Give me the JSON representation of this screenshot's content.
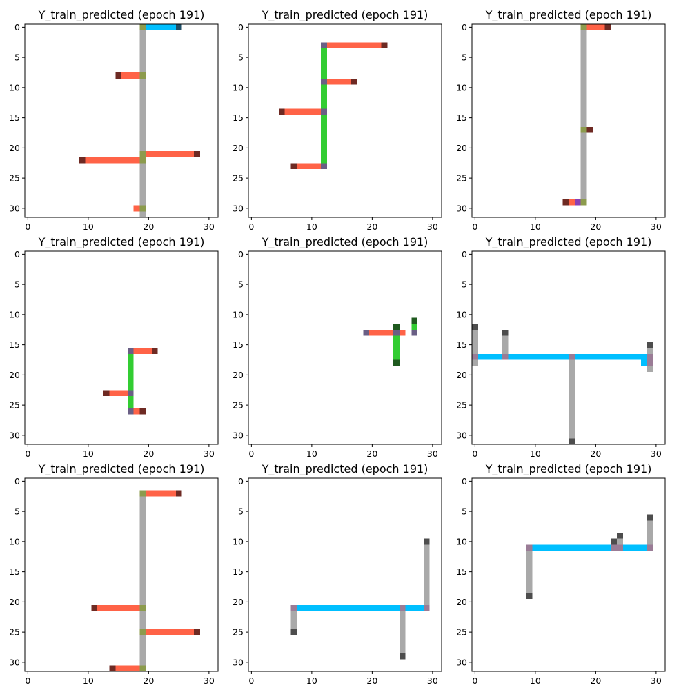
{
  "figure_title": "",
  "colors": {
    "light_gray": "#A9A9A9",
    "dark_gray": "#4D4D4D",
    "blue": "#00BFFF",
    "dark_teal": "#1F4E66",
    "olive": "#8C9B4D",
    "salmon": "#FF6347",
    "maroon": "#6E2A23",
    "slate_purple": "#6A5F85",
    "green": "#32CD32",
    "dark_green": "#1F5A1F",
    "mauve": "#9A7C96",
    "purple": "#8A3FB5"
  },
  "chart_data": [
    {
      "type": "heatmap",
      "title": "Y_train_predicted (epoch 191)",
      "xlim": [
        -0.5,
        31.5
      ],
      "ylim": [
        31.5,
        -0.5
      ],
      "xticks": [
        0,
        10,
        20,
        30
      ],
      "yticks": [
        0,
        5,
        10,
        15,
        20,
        25,
        30
      ],
      "segments": [
        {
          "row": 0,
          "col": 19,
          "len": 32,
          "dir": "v",
          "color": "light_gray"
        },
        {
          "row": 0,
          "col": 20,
          "len": 5,
          "dir": "h",
          "color": "blue"
        },
        {
          "row": 0,
          "col": 25,
          "len": 1,
          "dir": "h",
          "color": "dark_teal"
        },
        {
          "row": 8,
          "col": 16,
          "len": 3,
          "dir": "h",
          "color": "salmon"
        },
        {
          "row": 8,
          "col": 15,
          "len": 1,
          "dir": "h",
          "color": "maroon"
        },
        {
          "row": 21,
          "col": 20,
          "len": 8,
          "dir": "h",
          "color": "salmon"
        },
        {
          "row": 21,
          "col": 28,
          "len": 1,
          "dir": "h",
          "color": "maroon"
        },
        {
          "row": 22,
          "col": 10,
          "len": 9,
          "dir": "h",
          "color": "salmon"
        },
        {
          "row": 22,
          "col": 9,
          "len": 1,
          "dir": "h",
          "color": "maroon"
        },
        {
          "row": 30,
          "col": 18,
          "len": 1,
          "dir": "h",
          "color": "salmon"
        },
        {
          "row": 0,
          "col": 19,
          "len": 1,
          "dir": "h",
          "color": "olive"
        },
        {
          "row": 8,
          "col": 19,
          "len": 1,
          "dir": "h",
          "color": "olive"
        },
        {
          "row": 21,
          "col": 19,
          "len": 1,
          "dir": "h",
          "color": "olive"
        },
        {
          "row": 22,
          "col": 19,
          "len": 1,
          "dir": "h",
          "color": "olive"
        },
        {
          "row": 30,
          "col": 19,
          "len": 1,
          "dir": "h",
          "color": "olive"
        }
      ]
    },
    {
      "type": "heatmap",
      "title": "Y_train_predicted (epoch 191)",
      "xlim": [
        -0.5,
        31.5
      ],
      "ylim": [
        31.5,
        -0.5
      ],
      "xticks": [
        0,
        10,
        20,
        30
      ],
      "yticks": [
        0,
        5,
        10,
        15,
        20,
        25,
        30
      ],
      "segments": [
        {
          "row": 3,
          "col": 12,
          "len": 21,
          "dir": "v",
          "color": "green"
        },
        {
          "row": 3,
          "col": 13,
          "len": 9,
          "dir": "h",
          "color": "salmon"
        },
        {
          "row": 3,
          "col": 22,
          "len": 1,
          "dir": "h",
          "color": "maroon"
        },
        {
          "row": 9,
          "col": 13,
          "len": 4,
          "dir": "h",
          "color": "salmon"
        },
        {
          "row": 9,
          "col": 17,
          "len": 1,
          "dir": "h",
          "color": "maroon"
        },
        {
          "row": 14,
          "col": 6,
          "len": 6,
          "dir": "h",
          "color": "salmon"
        },
        {
          "row": 14,
          "col": 5,
          "len": 1,
          "dir": "h",
          "color": "maroon"
        },
        {
          "row": 23,
          "col": 8,
          "len": 4,
          "dir": "h",
          "color": "salmon"
        },
        {
          "row": 23,
          "col": 7,
          "len": 1,
          "dir": "h",
          "color": "maroon"
        },
        {
          "row": 3,
          "col": 12,
          "len": 1,
          "dir": "h",
          "color": "slate_purple"
        },
        {
          "row": 9,
          "col": 12,
          "len": 1,
          "dir": "h",
          "color": "slate_purple"
        },
        {
          "row": 14,
          "col": 12,
          "len": 1,
          "dir": "h",
          "color": "slate_purple"
        },
        {
          "row": 23,
          "col": 12,
          "len": 1,
          "dir": "h",
          "color": "slate_purple"
        }
      ]
    },
    {
      "type": "heatmap",
      "title": "Y_train_predicted (epoch 191)",
      "xlim": [
        -0.5,
        31.5
      ],
      "ylim": [
        31.5,
        -0.5
      ],
      "xticks": [
        0,
        10,
        20,
        30
      ],
      "yticks": [
        0,
        5,
        10,
        15,
        20,
        25,
        30
      ],
      "segments": [
        {
          "row": 0,
          "col": 18,
          "len": 30,
          "dir": "v",
          "color": "light_gray"
        },
        {
          "row": 0,
          "col": 19,
          "len": 3,
          "dir": "h",
          "color": "salmon"
        },
        {
          "row": 0,
          "col": 22,
          "len": 1,
          "dir": "h",
          "color": "maroon"
        },
        {
          "row": 17,
          "col": 19,
          "len": 1,
          "dir": "h",
          "color": "maroon"
        },
        {
          "row": 29,
          "col": 16,
          "len": 1,
          "dir": "h",
          "color": "salmon"
        },
        {
          "row": 29,
          "col": 15,
          "len": 1,
          "dir": "h",
          "color": "maroon"
        },
        {
          "row": 29,
          "col": 17,
          "len": 1,
          "dir": "h",
          "color": "purple"
        },
        {
          "row": 0,
          "col": 18,
          "len": 1,
          "dir": "h",
          "color": "olive"
        },
        {
          "row": 17,
          "col": 18,
          "len": 1,
          "dir": "h",
          "color": "olive"
        },
        {
          "row": 29,
          "col": 18,
          "len": 1,
          "dir": "h",
          "color": "olive"
        }
      ]
    },
    {
      "type": "heatmap",
      "title": "Y_train_predicted (epoch 191)",
      "xlim": [
        -0.5,
        31.5
      ],
      "ylim": [
        31.5,
        -0.5
      ],
      "xticks": [
        0,
        10,
        20,
        30
      ],
      "yticks": [
        0,
        5,
        10,
        15,
        20,
        25,
        30
      ],
      "segments": [
        {
          "row": 16,
          "col": 17,
          "len": 11,
          "dir": "v",
          "color": "green"
        },
        {
          "row": 16,
          "col": 18,
          "len": 3,
          "dir": "h",
          "color": "salmon"
        },
        {
          "row": 16,
          "col": 21,
          "len": 1,
          "dir": "h",
          "color": "maroon"
        },
        {
          "row": 23,
          "col": 14,
          "len": 3,
          "dir": "h",
          "color": "salmon"
        },
        {
          "row": 23,
          "col": 13,
          "len": 1,
          "dir": "h",
          "color": "maroon"
        },
        {
          "row": 26,
          "col": 18,
          "len": 1,
          "dir": "h",
          "color": "salmon"
        },
        {
          "row": 26,
          "col": 19,
          "len": 1,
          "dir": "h",
          "color": "maroon"
        },
        {
          "row": 16,
          "col": 17,
          "len": 1,
          "dir": "h",
          "color": "slate_purple"
        },
        {
          "row": 23,
          "col": 17,
          "len": 1,
          "dir": "h",
          "color": "slate_purple"
        },
        {
          "row": 26,
          "col": 17,
          "len": 1,
          "dir": "h",
          "color": "slate_purple"
        }
      ]
    },
    {
      "type": "heatmap",
      "title": "Y_train_predicted (epoch 191)",
      "xlim": [
        -0.5,
        31.5
      ],
      "ylim": [
        31.5,
        -0.5
      ],
      "xticks": [
        0,
        10,
        20,
        30
      ],
      "yticks": [
        0,
        5,
        10,
        15,
        20,
        25,
        30
      ],
      "segments": [
        {
          "row": 12,
          "col": 24,
          "len": 6,
          "dir": "v",
          "color": "green"
        },
        {
          "row": 12,
          "col": 24,
          "len": 1,
          "dir": "h",
          "color": "dark_green"
        },
        {
          "row": 18,
          "col": 24,
          "len": 1,
          "dir": "h",
          "color": "dark_green"
        },
        {
          "row": 11,
          "col": 27,
          "len": 1,
          "dir": "h",
          "color": "dark_green"
        },
        {
          "row": 12,
          "col": 27,
          "len": 1,
          "dir": "h",
          "color": "green"
        },
        {
          "row": 13,
          "col": 20,
          "len": 6,
          "dir": "h",
          "color": "salmon"
        },
        {
          "row": 13,
          "col": 19,
          "len": 1,
          "dir": "h",
          "color": "slate_purple"
        },
        {
          "row": 13,
          "col": 24,
          "len": 1,
          "dir": "h",
          "color": "slate_purple"
        },
        {
          "row": 13,
          "col": 27,
          "len": 1,
          "dir": "h",
          "color": "slate_purple"
        }
      ]
    },
    {
      "type": "heatmap",
      "title": "Y_train_predicted (epoch 191)",
      "xlim": [
        -0.5,
        31.5
      ],
      "ylim": [
        31.5,
        -0.5
      ],
      "xticks": [
        0,
        10,
        20,
        30
      ],
      "yticks": [
        0,
        5,
        10,
        15,
        20,
        25,
        30
      ],
      "segments": [
        {
          "row": 17,
          "col": 0,
          "len": 29,
          "dir": "h",
          "color": "blue"
        },
        {
          "row": 18,
          "col": 28,
          "len": 1,
          "dir": "h",
          "color": "blue"
        },
        {
          "row": 12,
          "col": 0,
          "len": 7,
          "dir": "v",
          "color": "light_gray"
        },
        {
          "row": 12,
          "col": 0,
          "len": 1,
          "dir": "h",
          "color": "dark_gray"
        },
        {
          "row": 13,
          "col": 5,
          "len": 5,
          "dir": "v",
          "color": "light_gray"
        },
        {
          "row": 13,
          "col": 5,
          "len": 1,
          "dir": "h",
          "color": "dark_gray"
        },
        {
          "row": 17,
          "col": 16,
          "len": 15,
          "dir": "v",
          "color": "light_gray"
        },
        {
          "row": 31,
          "col": 16,
          "len": 1,
          "dir": "h",
          "color": "dark_gray"
        },
        {
          "row": 15,
          "col": 29,
          "len": 5,
          "dir": "v",
          "color": "light_gray"
        },
        {
          "row": 15,
          "col": 29,
          "len": 1,
          "dir": "h",
          "color": "dark_gray"
        },
        {
          "row": 17,
          "col": 0,
          "len": 1,
          "dir": "h",
          "color": "mauve"
        },
        {
          "row": 17,
          "col": 5,
          "len": 1,
          "dir": "h",
          "color": "mauve"
        },
        {
          "row": 17,
          "col": 16,
          "len": 1,
          "dir": "h",
          "color": "mauve"
        },
        {
          "row": 17,
          "col": 29,
          "len": 2,
          "dir": "v",
          "color": "mauve"
        }
      ]
    },
    {
      "type": "heatmap",
      "title": "Y_train_predicted (epoch 191)",
      "xlim": [
        -0.5,
        31.5
      ],
      "ylim": [
        31.5,
        -0.5
      ],
      "xticks": [
        0,
        10,
        20,
        30
      ],
      "yticks": [
        0,
        5,
        10,
        15,
        20,
        25,
        30
      ],
      "segments": [
        {
          "row": 2,
          "col": 19,
          "len": 30,
          "dir": "v",
          "color": "light_gray"
        },
        {
          "row": 2,
          "col": 20,
          "len": 5,
          "dir": "h",
          "color": "salmon"
        },
        {
          "row": 2,
          "col": 25,
          "len": 1,
          "dir": "h",
          "color": "maroon"
        },
        {
          "row": 21,
          "col": 12,
          "len": 7,
          "dir": "h",
          "color": "salmon"
        },
        {
          "row": 21,
          "col": 11,
          "len": 1,
          "dir": "h",
          "color": "maroon"
        },
        {
          "row": 25,
          "col": 20,
          "len": 8,
          "dir": "h",
          "color": "salmon"
        },
        {
          "row": 25,
          "col": 28,
          "len": 1,
          "dir": "h",
          "color": "maroon"
        },
        {
          "row": 31,
          "col": 15,
          "len": 4,
          "dir": "h",
          "color": "salmon"
        },
        {
          "row": 31,
          "col": 14,
          "len": 1,
          "dir": "h",
          "color": "maroon"
        },
        {
          "row": 2,
          "col": 19,
          "len": 1,
          "dir": "h",
          "color": "olive"
        },
        {
          "row": 21,
          "col": 19,
          "len": 1,
          "dir": "h",
          "color": "olive"
        },
        {
          "row": 25,
          "col": 19,
          "len": 1,
          "dir": "h",
          "color": "olive"
        },
        {
          "row": 31,
          "col": 19,
          "len": 1,
          "dir": "h",
          "color": "olive"
        }
      ]
    },
    {
      "type": "heatmap",
      "title": "Y_train_predicted (epoch 191)",
      "xlim": [
        -0.5,
        31.5
      ],
      "ylim": [
        31.5,
        -0.5
      ],
      "xticks": [
        0,
        10,
        20,
        30
      ],
      "yticks": [
        0,
        5,
        10,
        15,
        20,
        25,
        30
      ],
      "segments": [
        {
          "row": 21,
          "col": 7,
          "len": 23,
          "dir": "h",
          "color": "blue"
        },
        {
          "row": 21,
          "col": 7,
          "len": 4,
          "dir": "v",
          "color": "light_gray"
        },
        {
          "row": 25,
          "col": 7,
          "len": 1,
          "dir": "h",
          "color": "dark_gray"
        },
        {
          "row": 21,
          "col": 25,
          "len": 8,
          "dir": "v",
          "color": "light_gray"
        },
        {
          "row": 29,
          "col": 25,
          "len": 1,
          "dir": "h",
          "color": "dark_gray"
        },
        {
          "row": 10,
          "col": 29,
          "len": 12,
          "dir": "v",
          "color": "light_gray"
        },
        {
          "row": 10,
          "col": 29,
          "len": 1,
          "dir": "h",
          "color": "dark_gray"
        },
        {
          "row": 21,
          "col": 7,
          "len": 1,
          "dir": "h",
          "color": "mauve"
        },
        {
          "row": 21,
          "col": 25,
          "len": 1,
          "dir": "h",
          "color": "mauve"
        },
        {
          "row": 21,
          "col": 29,
          "len": 1,
          "dir": "h",
          "color": "mauve"
        }
      ]
    },
    {
      "type": "heatmap",
      "title": "Y_train_predicted (epoch 191)",
      "xlim": [
        -0.5,
        31.5
      ],
      "ylim": [
        31.5,
        -0.5
      ],
      "xticks": [
        0,
        10,
        20,
        30
      ],
      "yticks": [
        0,
        5,
        10,
        15,
        20,
        25,
        30
      ],
      "segments": [
        {
          "row": 11,
          "col": 9,
          "len": 21,
          "dir": "h",
          "color": "blue"
        },
        {
          "row": 11,
          "col": 9,
          "len": 8,
          "dir": "v",
          "color": "light_gray"
        },
        {
          "row": 19,
          "col": 9,
          "len": 1,
          "dir": "h",
          "color": "dark_gray"
        },
        {
          "row": 6,
          "col": 29,
          "len": 5,
          "dir": "v",
          "color": "light_gray"
        },
        {
          "row": 6,
          "col": 29,
          "len": 1,
          "dir": "h",
          "color": "dark_gray"
        },
        {
          "row": 10,
          "col": 23,
          "len": 1,
          "dir": "h",
          "color": "dark_gray"
        },
        {
          "row": 9,
          "col": 24,
          "len": 1,
          "dir": "h",
          "color": "dark_gray"
        },
        {
          "row": 10,
          "col": 24,
          "len": 1,
          "dir": "h",
          "color": "light_gray"
        },
        {
          "row": 11,
          "col": 9,
          "len": 1,
          "dir": "h",
          "color": "mauve"
        },
        {
          "row": 11,
          "col": 23,
          "len": 2,
          "dir": "h",
          "color": "mauve"
        },
        {
          "row": 11,
          "col": 29,
          "len": 1,
          "dir": "h",
          "color": "mauve"
        }
      ]
    }
  ]
}
